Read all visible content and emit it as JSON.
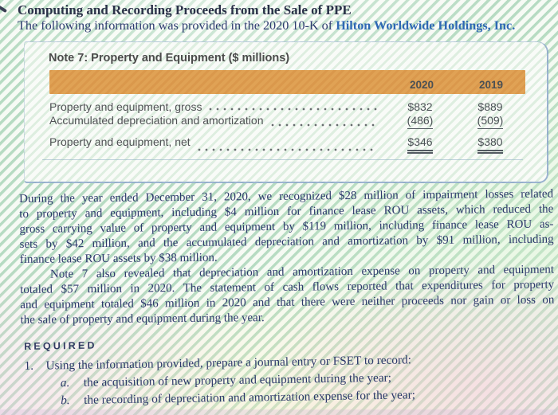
{
  "header": {
    "title": "Computing and Recording Proceeds from the Sale of PPE",
    "intro_prefix": "The following information was provided in the 2020 10-K of ",
    "company": "Hilton Worldwide Holdings, Inc."
  },
  "note_card": {
    "title": "Note 7: Property and Equipment ($ millions)",
    "columns": [
      "2020",
      "2019"
    ],
    "rows": [
      {
        "label": "Property and equipment, gross",
        "v2020": "$832",
        "v2019": "$889",
        "underline": "none"
      },
      {
        "label": "Accumulated depreciation and amortization",
        "v2020": "(486)",
        "v2019": "(509)",
        "underline": "single"
      },
      {
        "label": "Property and equipment, net",
        "v2020": "$346",
        "v2019": "$380",
        "underline": "double"
      }
    ]
  },
  "body": {
    "para1_lines": [
      "During the year ended December 31, 2020, we recognized $28 million of impairment losses related",
      "to property and equipment, including $4 million for finance lease ROU assets, which reduced the",
      "gross carrying value of property and equipment by $119 million, including finance lease ROU as-",
      "sets by $42 million, and the accumulated depreciation and amortization by $91 million, including",
      "finance lease ROU assets by $38 million."
    ],
    "para2_lines": [
      "Note 7 also revealed that depreciation and amortization expense on property and equipment",
      "totaled $57 million in 2020. The statement of cash flows reported that expenditures for property",
      "and equipment totaled $46 million in 2020 and that there were neither proceeds nor gain or loss on",
      "the sale of property and equipment during the year."
    ]
  },
  "required": {
    "heading": "REQUIRED",
    "item1_number": "1.",
    "item1_text": "Using the information provided, prepare a journal entry or FSET to record:",
    "sub_items": [
      {
        "marker": "a.",
        "text": "the acquisition of new property and equipment during the year;"
      },
      {
        "marker": "b.",
        "text": "the recording of depreciation and amortization expense for the year;"
      }
    ]
  },
  "colors": {
    "table_header_orange": "#e0a255",
    "company_blue": "#2e68b4",
    "body_navy": "#2d3a6c",
    "background_mint": "#e9f2e7"
  }
}
